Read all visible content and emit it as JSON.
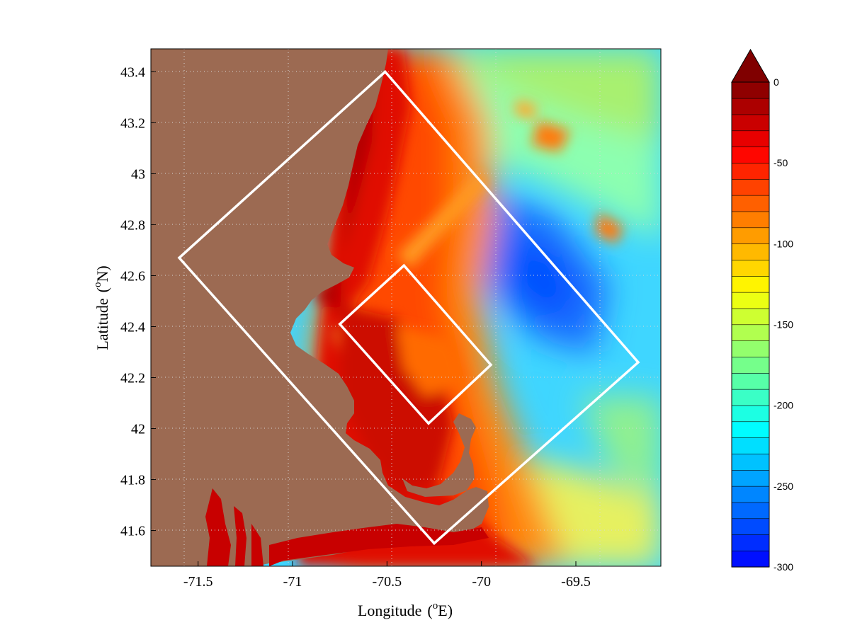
{
  "map": {
    "xlabel": "Longitude",
    "xunit": "E",
    "ylabel": "Latitude",
    "yunit": "N",
    "degree_symbol": "o",
    "lon_range": [
      -71.75,
      -69.05
    ],
    "lat_range": [
      41.46,
      43.49
    ],
    "lon_ticks": [
      -71.5,
      -71,
      -70.5,
      -70,
      -69.5
    ],
    "lon_tick_labels": [
      "-71.5",
      "-71",
      "-70.5",
      "-70",
      "-69.5"
    ],
    "lat_ticks": [
      41.6,
      41.8,
      42.0,
      42.2,
      42.4,
      42.6,
      42.8,
      43.0,
      43.2,
      43.4
    ],
    "lat_tick_labels": [
      "41.6",
      "41.8",
      "42",
      "42.2",
      "42.4",
      "42.6",
      "42.8",
      "43",
      "43.2",
      "43.4"
    ],
    "grid": true,
    "land_color": "#9c6a52",
    "box_color": "#ffffff",
    "outer_domain": [
      [
        -70.51,
        43.4
      ],
      [
        -69.17,
        42.26
      ],
      [
        -70.25,
        41.55
      ],
      [
        -71.6,
        42.67
      ]
    ],
    "inner_domain": [
      [
        -70.41,
        42.64
      ],
      [
        -69.95,
        42.25
      ],
      [
        -70.28,
        42.02
      ],
      [
        -70.75,
        42.41
      ]
    ]
  },
  "colorbar": {
    "min": -300,
    "max": 0,
    "levels": 30,
    "extend": "max",
    "ticks": [
      0,
      -50,
      -100,
      -150,
      -200,
      -250,
      -300
    ],
    "tick_labels": [
      "0",
      "-50",
      "-100",
      "-150",
      "-200",
      "-250",
      "-300"
    ],
    "colormap": [
      "#0000ff",
      "#0080ff",
      "#00ffff",
      "#80ff80",
      "#ffff00",
      "#ff8000",
      "#ff0000",
      "#800000"
    ]
  }
}
